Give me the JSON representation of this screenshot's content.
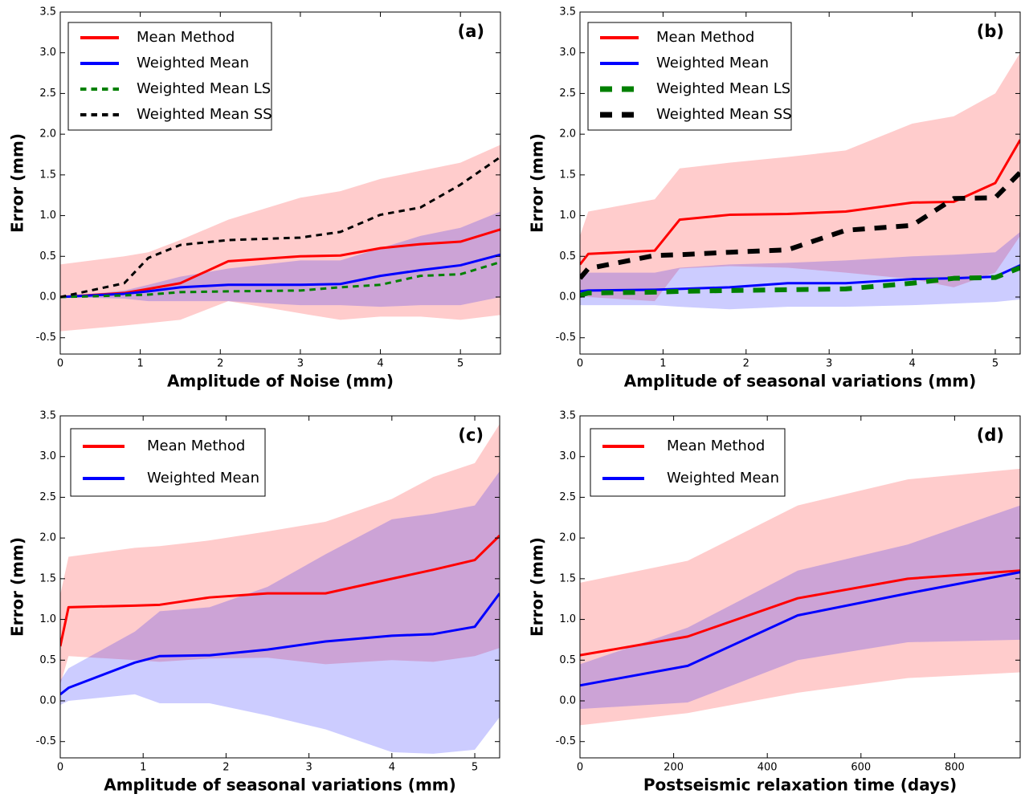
{
  "chart_data": [
    {
      "type": "line",
      "annotation": "(a)",
      "x_label": "Amplitude of Noise (mm)",
      "y_label": "Error (mm)",
      "x": [
        0,
        0.8,
        1.1,
        1.5,
        2.1,
        3,
        3.5,
        4,
        4.5,
        5,
        5.5
      ],
      "xlim": [
        0,
        5.5
      ],
      "xticks": [
        0,
        1,
        2,
        3,
        4,
        5
      ],
      "ylim": [
        -0.7,
        3.5
      ],
      "yticks": [
        -0.5,
        {
          "value": 0,
          "label": "0.0"
        },
        0.5,
        {
          "value": 1,
          "label": "1.0"
        },
        1.5,
        {
          "value": 2,
          "label": "2.0"
        },
        2.5,
        {
          "value": 3,
          "label": "3.0"
        },
        3.5
      ],
      "legend": "upper left",
      "series": [
        {
          "name": "Mean Method",
          "color": "#ff0000",
          "dashed": false,
          "linewidth": 3,
          "values": [
            0,
            0.05,
            0.1,
            0.17,
            0.44,
            0.5,
            0.51,
            0.6,
            0.65,
            0.68,
            0.83
          ],
          "band_upper": [
            0.4,
            0.5,
            0.55,
            0.7,
            0.95,
            1.22,
            1.3,
            1.45,
            1.55,
            1.65,
            1.87
          ],
          "band_lower": [
            -0.42,
            -0.35,
            -0.32,
            -0.28,
            -0.05,
            -0.2,
            -0.28,
            -0.24,
            -0.24,
            -0.28,
            -0.22
          ]
        },
        {
          "name": "Weighted Mean",
          "color": "#0000ff",
          "dashed": false,
          "linewidth": 3,
          "values": [
            0,
            0.04,
            0.07,
            0.12,
            0.15,
            0.15,
            0.16,
            0.26,
            0.33,
            0.39,
            0.52
          ],
          "band_upper": [
            0,
            0.08,
            0.15,
            0.25,
            0.35,
            0.45,
            0.45,
            0.6,
            0.75,
            0.85,
            1.05
          ],
          "band_lower": [
            0,
            -0.02,
            -0.05,
            -0.05,
            -0.05,
            -0.1,
            -0.1,
            -0.12,
            -0.1,
            -0.1,
            0
          ]
        },
        {
          "name": "Weighted Mean LS",
          "color": "#008000",
          "dashed": true,
          "linewidth": 3,
          "values": [
            0,
            0.02,
            0.03,
            0.06,
            0.07,
            0.08,
            0.12,
            0.15,
            0.26,
            0.28,
            0.43
          ]
        },
        {
          "name": "Weighted Mean SS",
          "color": "#000000",
          "dashed": true,
          "linewidth": 3,
          "values": [
            0,
            0.17,
            0.48,
            0.64,
            0.7,
            0.73,
            0.8,
            1.01,
            1.1,
            1.38,
            1.72
          ]
        }
      ]
    },
    {
      "type": "line",
      "annotation": "(b)",
      "x_label": "Amplitude of seasonal variations (mm)",
      "y_label": "Error (mm)",
      "x": [
        0,
        0.1,
        0.9,
        1.2,
        1.8,
        2.5,
        3.2,
        4,
        4.5,
        5,
        5.3
      ],
      "xlim": [
        0,
        5.3
      ],
      "xticks": [
        0,
        1,
        2,
        3,
        4,
        5
      ],
      "ylim": [
        -0.7,
        3.5
      ],
      "yticks": [
        -0.5,
        {
          "value": 0,
          "label": "0.0"
        },
        0.5,
        {
          "value": 1,
          "label": "1.0"
        },
        1.5,
        {
          "value": 2,
          "label": "2.0"
        },
        2.5,
        {
          "value": 3,
          "label": "3.0"
        },
        3.5
      ],
      "legend": "upper left",
      "series": [
        {
          "name": "Mean Method",
          "color": "#ff0000",
          "dashed": false,
          "linewidth": 3,
          "values": [
            0.4,
            0.53,
            0.57,
            0.95,
            1.01,
            1.02,
            1.05,
            1.16,
            1.17,
            1.4,
            1.93
          ],
          "band_upper": [
            0.75,
            1.05,
            1.2,
            1.58,
            1.65,
            1.72,
            1.8,
            2.13,
            2.22,
            2.5,
            3.0
          ],
          "band_lower": [
            0.05,
            0,
            -0.05,
            0.35,
            0.38,
            0.36,
            0.3,
            0.22,
            0.12,
            0.3,
            0.75
          ]
        },
        {
          "name": "Weighted Mean",
          "color": "#0000ff",
          "dashed": false,
          "linewidth": 3,
          "values": [
            0.07,
            0.08,
            0.09,
            0.1,
            0.12,
            0.17,
            0.17,
            0.22,
            0.23,
            0.25,
            0.39
          ],
          "band_upper": [
            0.3,
            0.3,
            0.3,
            0.36,
            0.4,
            0.42,
            0.45,
            0.5,
            0.52,
            0.55,
            0.8
          ],
          "band_lower": [
            -0.1,
            -0.1,
            -0.1,
            -0.12,
            -0.15,
            -0.12,
            -0.12,
            -0.1,
            -0.08,
            -0.06,
            -0.03
          ]
        },
        {
          "name": "Weighted Mean LS",
          "color": "#008000",
          "dashed": true,
          "linewidth": 6,
          "values": [
            0.02,
            0.05,
            0.06,
            0.07,
            0.08,
            0.09,
            0.1,
            0.17,
            0.23,
            0.24,
            0.36
          ]
        },
        {
          "name": "Weighted Mean SS",
          "color": "#000000",
          "dashed": true,
          "linewidth": 6,
          "values": [
            0.23,
            0.35,
            0.51,
            0.52,
            0.55,
            0.58,
            0.82,
            0.88,
            1.21,
            1.22,
            1.53
          ]
        }
      ]
    },
    {
      "type": "line",
      "annotation": "(c)",
      "x_label": "Amplitude of seasonal variations (mm)",
      "y_label": "Error (mm)",
      "x": [
        0,
        0.1,
        0.9,
        1.2,
        1.8,
        2.5,
        3.2,
        4,
        4.5,
        5,
        5.3
      ],
      "xlim": [
        0,
        5.3
      ],
      "xticks": [
        0,
        1,
        2,
        3,
        4,
        5
      ],
      "ylim": [
        -0.7,
        3.5
      ],
      "yticks": [
        -0.5,
        {
          "value": 0,
          "label": "0.0"
        },
        0.5,
        {
          "value": 1,
          "label": "1.0"
        },
        1.5,
        {
          "value": 2,
          "label": "2.0"
        },
        2.5,
        {
          "value": 3,
          "label": "3.0"
        },
        3.5
      ],
      "legend": "upper left",
      "series": [
        {
          "name": "Mean Method",
          "color": "#ff0000",
          "dashed": false,
          "linewidth": 3,
          "values": [
            0.67,
            1.15,
            1.17,
            1.18,
            1.27,
            1.32,
            1.32,
            1.5,
            1.61,
            1.73,
            2.03
          ],
          "band_upper": [
            1.3,
            1.77,
            1.88,
            1.9,
            1.97,
            2.08,
            2.2,
            2.48,
            2.75,
            2.92,
            3.4
          ],
          "band_lower": [
            0.2,
            0.55,
            0.5,
            0.48,
            0.52,
            0.53,
            0.45,
            0.5,
            0.48,
            0.55,
            0.65
          ]
        },
        {
          "name": "Weighted Mean",
          "color": "#0000ff",
          "dashed": false,
          "linewidth": 3,
          "values": [
            0.08,
            0.16,
            0.47,
            0.55,
            0.56,
            0.63,
            0.73,
            0.8,
            0.82,
            0.91,
            1.32
          ],
          "band_upper": [
            0.25,
            0.4,
            0.85,
            1.1,
            1.15,
            1.4,
            1.8,
            2.23,
            2.3,
            2.4,
            2.82
          ],
          "band_lower": [
            -0.05,
            0,
            0.08,
            -0.03,
            -0.03,
            -0.18,
            -0.35,
            -0.63,
            -0.65,
            -0.6,
            -0.2
          ]
        }
      ]
    },
    {
      "type": "line",
      "annotation": "(d)",
      "x_label": "Postseismic relaxation time (days)",
      "y_label": "Error (mm)",
      "x": [
        0,
        230,
        465,
        700,
        940
      ],
      "xlim": [
        0,
        940
      ],
      "xticks": [
        0,
        200,
        400,
        600,
        800
      ],
      "ylim": [
        -0.7,
        3.5
      ],
      "yticks": [
        -0.5,
        {
          "value": 0,
          "label": "0.0"
        },
        0.5,
        {
          "value": 1,
          "label": "1.0"
        },
        1.5,
        {
          "value": 2,
          "label": "2.0"
        },
        2.5,
        {
          "value": 3,
          "label": "3.0"
        },
        3.5
      ],
      "legend": "upper left",
      "series": [
        {
          "name": "Mean Method",
          "color": "#ff0000",
          "dashed": false,
          "linewidth": 3,
          "values": [
            0.56,
            0.79,
            1.26,
            1.5,
            1.6
          ],
          "band_upper": [
            1.45,
            1.72,
            2.4,
            2.72,
            2.85
          ],
          "band_lower": [
            -0.3,
            -0.15,
            0.1,
            0.28,
            0.35
          ]
        },
        {
          "name": "Weighted Mean",
          "color": "#0000ff",
          "dashed": false,
          "linewidth": 3,
          "values": [
            0.19,
            0.43,
            1.05,
            1.32,
            1.58
          ],
          "band_upper": [
            0.45,
            0.9,
            1.6,
            1.92,
            2.4
          ],
          "band_lower": [
            -0.1,
            -0.02,
            0.5,
            0.72,
            0.75
          ]
        }
      ]
    }
  ]
}
